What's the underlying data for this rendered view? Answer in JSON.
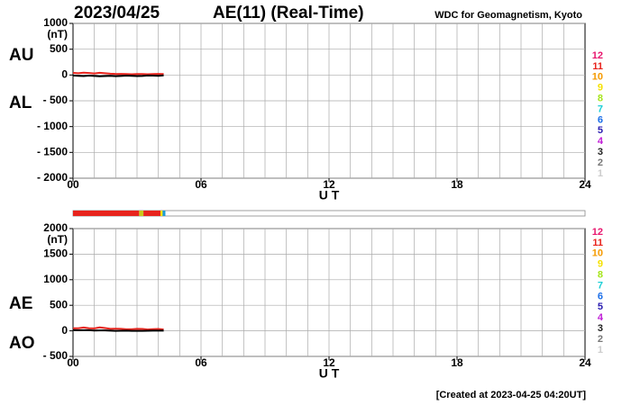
{
  "date": "2023/04/25",
  "title": "AE(11) (Real-Time)",
  "source": "WDC for Geomagnetism, Kyoto",
  "footer": "[Created at 2023-04-25 04:20UT]",
  "color_key": [
    {
      "label": "12",
      "color": "#e8166e"
    },
    {
      "label": "11",
      "color": "#e8231c"
    },
    {
      "label": "10",
      "color": "#f59a00"
    },
    {
      "label": "9",
      "color": "#f5e100"
    },
    {
      "label": "8",
      "color": "#a6e51c"
    },
    {
      "label": "7",
      "color": "#1ccfd6"
    },
    {
      "label": "6",
      "color": "#1c6fe8"
    },
    {
      "label": "5",
      "color": "#2a1cb0"
    },
    {
      "label": "4",
      "color": "#c01cd6"
    },
    {
      "label": "3",
      "color": "#222222"
    },
    {
      "label": "2",
      "color": "#777777"
    },
    {
      "label": "1",
      "color": "#cccccc"
    }
  ],
  "status_segments": [
    {
      "start": 0,
      "end": 3.1,
      "color": "#e8231c"
    },
    {
      "start": 3.1,
      "end": 3.3,
      "color": "#c8c81c"
    },
    {
      "start": 3.3,
      "end": 4.1,
      "color": "#e8231c"
    },
    {
      "start": 4.1,
      "end": 4.2,
      "color": "#f5e100"
    },
    {
      "start": 4.2,
      "end": 4.33,
      "color": "#1c9ad6"
    }
  ],
  "chart_data": [
    {
      "type": "line",
      "unit": "(nT)",
      "xlabel": "U T",
      "x": [
        0,
        0.25,
        0.5,
        0.75,
        1,
        1.25,
        1.5,
        1.75,
        2,
        2.25,
        2.5,
        2.75,
        3,
        3.25,
        3.5,
        3.75,
        4,
        4.25
      ],
      "series": [
        {
          "name": "AU",
          "color": "#e8231c",
          "values": [
            40,
            35,
            45,
            38,
            30,
            42,
            35,
            25,
            20,
            22,
            18,
            15,
            20,
            18,
            15,
            20,
            22,
            18
          ]
        },
        {
          "name": "AL",
          "color": "#000000",
          "values": [
            -10,
            -15,
            -20,
            -12,
            -18,
            -25,
            -20,
            -15,
            -22,
            -18,
            -12,
            -15,
            -20,
            -18,
            -10,
            -12,
            -15,
            -8
          ]
        }
      ],
      "xlim": [
        0,
        24
      ],
      "xticks": [
        {
          "value": 0,
          "label": "00"
        },
        {
          "value": 6,
          "label": "06"
        },
        12,
        18,
        24
      ],
      "ylim": [
        -2000,
        1000
      ],
      "yticks": [
        1000,
        500,
        0,
        {
          "value": -500,
          "label": "- 500"
        },
        {
          "value": -1000,
          "label": "- 1000"
        },
        {
          "value": -1500,
          "label": "- 1500"
        },
        {
          "value": -2000,
          "label": "- 2000"
        }
      ],
      "grid": true
    },
    {
      "type": "line",
      "unit": "(nT)",
      "xlabel": "U T",
      "x": [
        0,
        0.25,
        0.5,
        0.75,
        1,
        1.25,
        1.5,
        1.75,
        2,
        2.25,
        2.5,
        2.75,
        3,
        3.25,
        3.5,
        3.75,
        4,
        4.25
      ],
      "series": [
        {
          "name": "AE",
          "color": "#e8231c",
          "values": [
            50,
            50,
            65,
            50,
            48,
            67,
            55,
            40,
            42,
            40,
            30,
            30,
            40,
            36,
            25,
            32,
            37,
            26
          ]
        },
        {
          "name": "AO",
          "color": "#000000",
          "values": [
            15,
            10,
            12.5,
            13,
            6,
            8.5,
            7.5,
            5,
            -1,
            2,
            3,
            0,
            0,
            0,
            2.5,
            4,
            3.5,
            5
          ]
        }
      ],
      "xlim": [
        0,
        24
      ],
      "xticks": [
        {
          "value": 0,
          "label": "00"
        },
        {
          "value": 6,
          "label": "06"
        },
        12,
        18,
        24
      ],
      "ylim": [
        -500,
        2000
      ],
      "yticks": [
        2000,
        1500,
        1000,
        500,
        0,
        {
          "value": -500,
          "label": "- 500"
        }
      ],
      "grid": true
    }
  ]
}
